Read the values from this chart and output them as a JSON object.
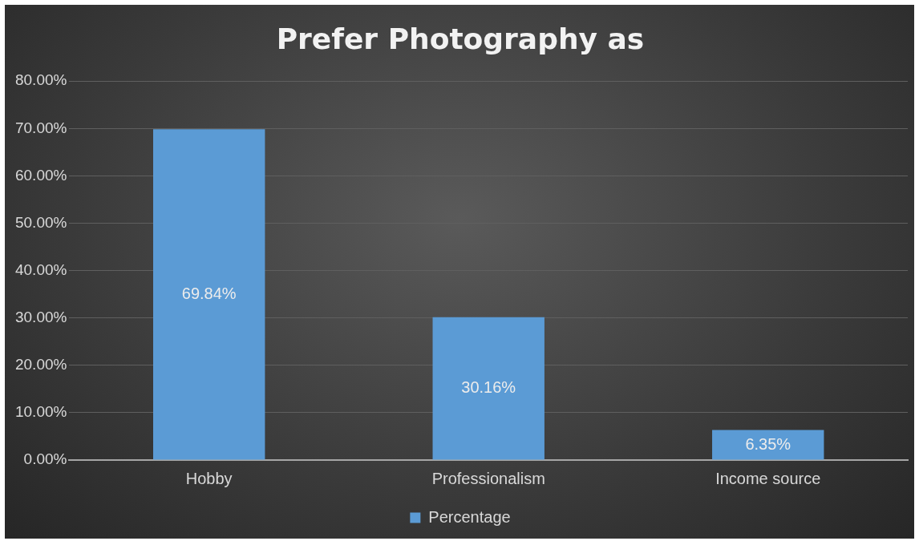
{
  "chart_data": {
    "type": "bar",
    "title": "Prefer Photography as",
    "categories": [
      "Hobby",
      "Professionalism",
      "Income source"
    ],
    "series": [
      {
        "name": "Percentage",
        "color": "#5b9bd5",
        "values": [
          69.84,
          30.16,
          6.35
        ],
        "value_labels": [
          "69.84%",
          "30.16%",
          "6.35%"
        ]
      }
    ],
    "ylim": [
      0,
      80
    ],
    "yticks": [
      {
        "value": 0,
        "label": "0.00%"
      },
      {
        "value": 10,
        "label": "10.00%"
      },
      {
        "value": 20,
        "label": "20.00%"
      },
      {
        "value": 30,
        "label": "30.00%"
      },
      {
        "value": 40,
        "label": "40.00%"
      },
      {
        "value": 50,
        "label": "50.00%"
      },
      {
        "value": 60,
        "label": "60.00%"
      },
      {
        "value": 70,
        "label": "70.00%"
      },
      {
        "value": 80,
        "label": "80.00%"
      }
    ],
    "grid": "y",
    "legend": "bottom"
  }
}
